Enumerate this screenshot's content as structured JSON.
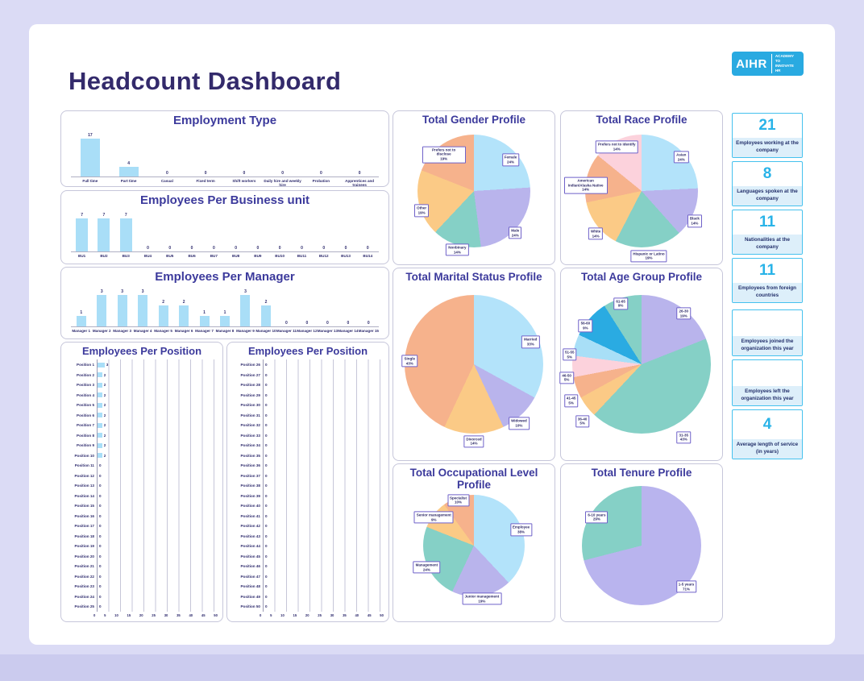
{
  "page": {
    "title": "Headcount Dashboard",
    "logo": {
      "brand": "AIHR",
      "tagline": "ACADEMY TO INNOVATE HR"
    }
  },
  "colors": {
    "background": "#dbdbf5",
    "title": "#332a6b",
    "chart_title": "#3c3a9c",
    "axis_text": "#2f2c6e",
    "bar_fill": "#a9def7",
    "kpi_accent": "#29b3e8",
    "kpi_border": "#45c1ee",
    "kpi_label_bg": "#ddeffa",
    "logo_bg": "#29aae1",
    "pie_label_border": "#6f62c9"
  },
  "kpis": [
    {
      "value": "21",
      "label": "Employees working at the company"
    },
    {
      "value": "8",
      "label": "Languages spoken at the company"
    },
    {
      "value": "11",
      "label": "Nationalities at the company"
    },
    {
      "value": "11",
      "label": "Employees from foreign countries"
    },
    {
      "value": "",
      "label": "Employees joined the organization this year"
    },
    {
      "value": "",
      "label": "Employees left the organization this year"
    },
    {
      "value": "4",
      "label": "Average length of service (in years)"
    }
  ],
  "chart_data": [
    {
      "type": "bar",
      "title": "Employment Type",
      "categories": [
        "Full time",
        "Part time",
        "Casual",
        "Fixed term",
        "Shift workers",
        "Daily hire and weekly hire",
        "Probation",
        "Apprentices and trainees"
      ],
      "values": [
        17,
        4,
        0,
        0,
        0,
        0,
        0,
        0
      ],
      "ylim": [
        0,
        17
      ]
    },
    {
      "type": "bar",
      "title": "Employees Per Business unit",
      "categories": [
        "BU1",
        "BU2",
        "BU3",
        "BU4",
        "BU5",
        "BU6",
        "BU7",
        "BU8",
        "BU9",
        "BU10",
        "BU11",
        "BU12",
        "BU13",
        "BU14"
      ],
      "values": [
        7,
        7,
        7,
        0,
        0,
        0,
        0,
        0,
        0,
        0,
        0,
        0,
        0,
        0
      ],
      "ylim": [
        0,
        7
      ]
    },
    {
      "type": "bar",
      "title": "Employees Per Manager",
      "categories": [
        "Manager 1",
        "Manager 2",
        "Manager 3",
        "Manager 4",
        "Manager 5",
        "Manager 6",
        "Manager 7",
        "Manager 8",
        "Manager 9",
        "Manager 10",
        "Manager 11",
        "Manager 12",
        "Manager 13",
        "Manager 14",
        "Manager 15"
      ],
      "values": [
        1,
        3,
        3,
        3,
        2,
        2,
        1,
        1,
        3,
        2,
        0,
        0,
        0,
        0,
        0
      ],
      "ylim": [
        0,
        3
      ]
    },
    {
      "type": "hbar",
      "title": "Employees Per Position",
      "categories": [
        "Position 1",
        "Position 2",
        "Position 3",
        "Position 4",
        "Position 5",
        "Position 6",
        "Position 7",
        "Position 8",
        "Position 9",
        "Position 10",
        "Position 11",
        "Position 12",
        "Position 13",
        "Position 14",
        "Position 15",
        "Position 16",
        "Position 17",
        "Position 18",
        "Position 19",
        "Position 20",
        "Position 21",
        "Position 22",
        "Position 23",
        "Position 24",
        "Position 25"
      ],
      "values": [
        3,
        2,
        2,
        2,
        2,
        2,
        2,
        2,
        2,
        2,
        0,
        0,
        0,
        0,
        0,
        0,
        0,
        0,
        0,
        0,
        0,
        0,
        0,
        0,
        0
      ],
      "xlim": [
        0,
        50
      ],
      "xticks": [
        0,
        5,
        10,
        15,
        20,
        25,
        30,
        35,
        40,
        45,
        50
      ]
    },
    {
      "type": "hbar",
      "title": "Employees Per Position",
      "categories": [
        "Position 26",
        "Position 27",
        "Position 28",
        "Position 29",
        "Position 30",
        "Position 31",
        "Position 32",
        "Position 33",
        "Position 34",
        "Position 35",
        "Position 36",
        "Position 37",
        "Position 38",
        "Position 39",
        "Position 40",
        "Position 41",
        "Position 42",
        "Position 43",
        "Position 44",
        "Position 45",
        "Position 46",
        "Position 47",
        "Position 48",
        "Position 49",
        "Position 50"
      ],
      "values": [
        0,
        0,
        0,
        0,
        0,
        0,
        0,
        0,
        0,
        0,
        0,
        0,
        0,
        0,
        0,
        0,
        0,
        0,
        0,
        0,
        0,
        0,
        0,
        0,
        0
      ],
      "xlim": [
        0,
        50
      ],
      "xticks": [
        0,
        5,
        10,
        15,
        20,
        25,
        30,
        35,
        40,
        45,
        50
      ]
    },
    {
      "type": "pie",
      "title": "Total Gender Profile",
      "slices": [
        {
          "label": "Female",
          "pct": 24,
          "color": "#b3e3fa"
        },
        {
          "label": "Male",
          "pct": 24,
          "color": "#b9b4ec"
        },
        {
          "label": "Nonbinary",
          "pct": 14,
          "color": "#85d0c6"
        },
        {
          "label": "Other",
          "pct": 19,
          "color": "#fbca86"
        },
        {
          "label": "Prefers not to disclose",
          "pct": 19,
          "color": "#f6b28c"
        }
      ]
    },
    {
      "type": "pie",
      "title": "Total Race Profile",
      "slices": [
        {
          "label": "Asian",
          "pct": 24,
          "color": "#b3e3fa"
        },
        {
          "label": "Black",
          "pct": 14,
          "color": "#b9b4ec"
        },
        {
          "label": "Hispanic or Latino",
          "pct": 19,
          "color": "#85d0c6"
        },
        {
          "label": "White",
          "pct": 14,
          "color": "#fbca86"
        },
        {
          "label": "American Indian/Alaska Native",
          "pct": 14,
          "color": "#f6b28c"
        },
        {
          "label": "Prefers not to identify",
          "pct": 14,
          "color": "#fcd2dc"
        }
      ]
    },
    {
      "type": "pie",
      "title": "Total Marital Status Profile",
      "slices": [
        {
          "label": "Married",
          "pct": 33,
          "color": "#b3e3fa"
        },
        {
          "label": "Widowed",
          "pct": 10,
          "color": "#b9b4ec"
        },
        {
          "label": "Divorced",
          "pct": 14,
          "color": "#fbca86"
        },
        {
          "label": "Single",
          "pct": 43,
          "color": "#f6b28c"
        }
      ]
    },
    {
      "type": "pie",
      "title": "Total Age Group Profile",
      "slices": [
        {
          "label": "26-30",
          "pct": 19,
          "color": "#b9b4ec"
        },
        {
          "label": "31-35",
          "pct": 43,
          "color": "#85d0c6"
        },
        {
          "label": "36-40",
          "pct": 5,
          "color": "#fbca86"
        },
        {
          "label": "41-45",
          "pct": 5,
          "color": "#f6b28c"
        },
        {
          "label": "46-50",
          "pct": 5,
          "color": "#fcd2dc"
        },
        {
          "label": "51-55",
          "pct": 5,
          "color": "#a8dff7"
        },
        {
          "label": "56-60",
          "pct": 9,
          "color": "#2aabe2"
        },
        {
          "label": "61-65",
          "pct": 9,
          "color": "#85d0c6"
        }
      ]
    },
    {
      "type": "pie",
      "title": "Total Occupational Level Profile",
      "slices": [
        {
          "label": "Employee",
          "pct": 38,
          "color": "#b3e3fa"
        },
        {
          "label": "Junior management",
          "pct": 19,
          "color": "#b9b4ec"
        },
        {
          "label": "Management",
          "pct": 24,
          "color": "#85d0c6"
        },
        {
          "label": "Senior management",
          "pct": 9,
          "color": "#fbca86"
        },
        {
          "label": "Specialist",
          "pct": 10,
          "color": "#f6b28c"
        }
      ]
    },
    {
      "type": "pie",
      "title": "Total Tenure Profile",
      "slices": [
        {
          "label": "1-5 years",
          "pct": 71,
          "color": "#b9b4ee"
        },
        {
          "label": "6-10 years",
          "pct": 29,
          "color": "#85d0c6"
        }
      ]
    }
  ]
}
